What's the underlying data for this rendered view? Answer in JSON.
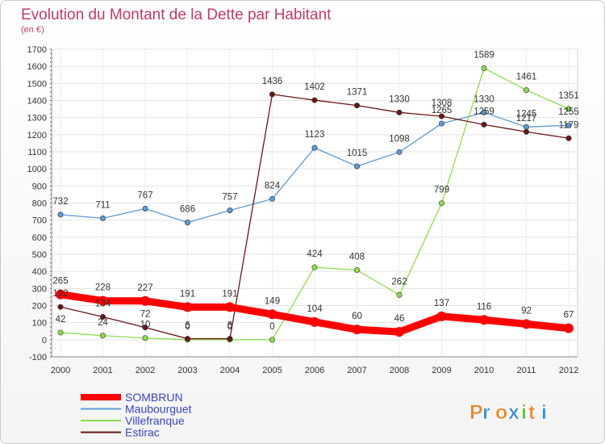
{
  "chart_data": {
    "type": "line",
    "title": "Evolution du Montant de la Dette par Habitant",
    "subtitle": "(en €)",
    "xlabel": "",
    "ylabel": "",
    "x": [
      "2000",
      "2001",
      "2002",
      "2003",
      "2004",
      "2005",
      "2006",
      "2007",
      "2008",
      "2009",
      "2010",
      "2011",
      "2012"
    ],
    "ylim": [
      -100,
      1700
    ],
    "yticks": [
      -100,
      0,
      100,
      200,
      300,
      400,
      500,
      600,
      700,
      800,
      900,
      1000,
      1100,
      1200,
      1300,
      1400,
      1500,
      1600,
      1700
    ],
    "grid": true,
    "legend_placement": "bottom-left",
    "series": [
      {
        "name": "SOMBRUN",
        "color": "#ff0000",
        "values": [
          265,
          228,
          227,
          191,
          191,
          149,
          104,
          60,
          46,
          137,
          116,
          92,
          67
        ]
      },
      {
        "name": "Maubourguet",
        "color": "#5b9bd5",
        "values": [
          732,
          711,
          767,
          686,
          757,
          824,
          1123,
          1015,
          1098,
          1265,
          1330,
          1245,
          1255
        ]
      },
      {
        "name": "Villefranque",
        "color": "#8ddc4c",
        "values": [
          42,
          24,
          10,
          0,
          0,
          0,
          424,
          408,
          262,
          799,
          1589,
          1461,
          1351
        ]
      },
      {
        "name": "Estirac",
        "color": "#6a1515",
        "values": [
          192,
          134,
          72,
          6,
          6,
          1436,
          1402,
          1371,
          1330,
          1308,
          1259,
          1217,
          1179
        ]
      }
    ]
  },
  "branding": {
    "logo_text": "Proxiti",
    "logo_colors": [
      "#e8862d",
      "#3a8fcf",
      "#e8862d",
      "#3a8fcf",
      "#5bbf3c",
      "#e8862d",
      "#3a8fcf"
    ]
  }
}
